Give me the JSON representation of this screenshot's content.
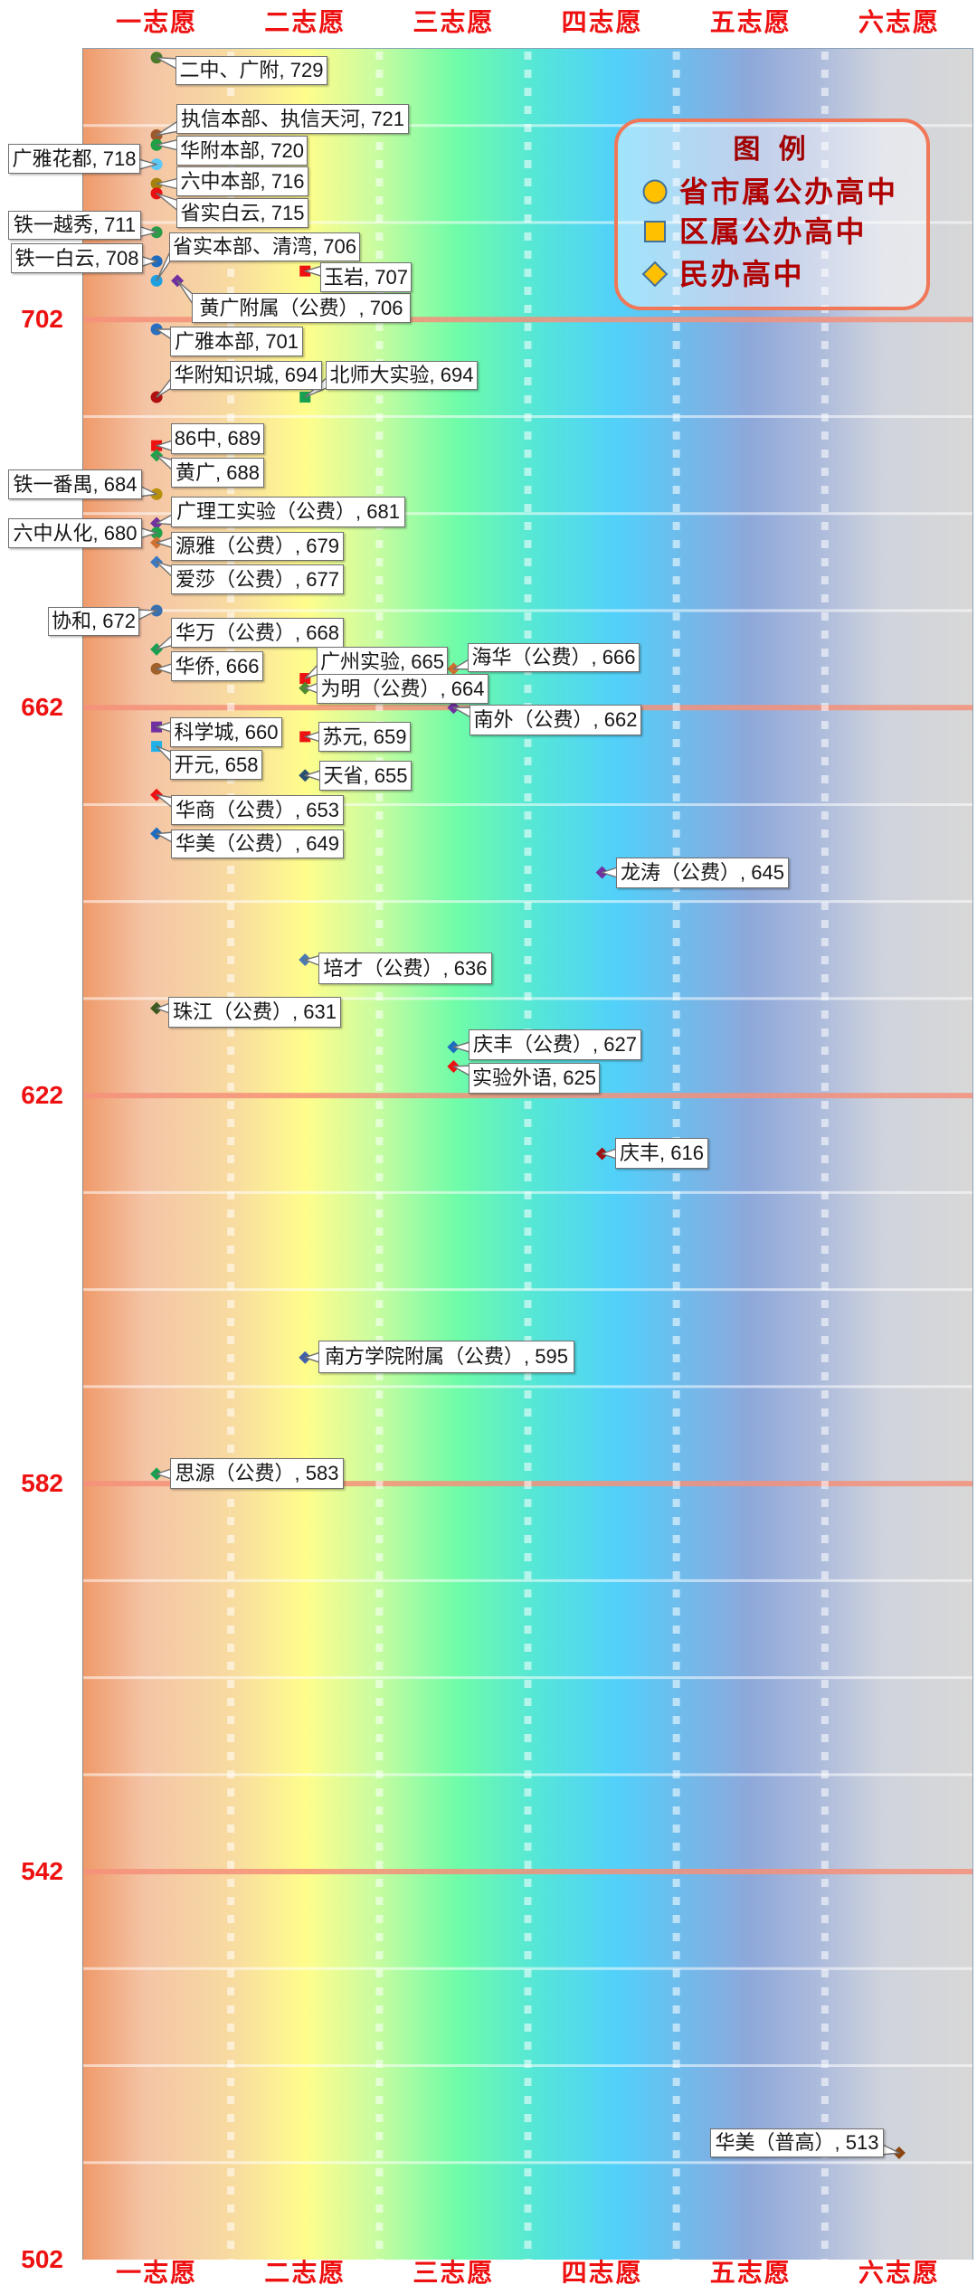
{
  "axis": {
    "top_categories": [
      "一志愿",
      "二志愿",
      "三志愿",
      "四志愿",
      "五志愿",
      "六志愿"
    ],
    "bottom_categories": [
      "一志愿",
      "二志愿",
      "三志愿",
      "四志愿",
      "五志愿",
      "六志愿"
    ],
    "y_labels": [
      "702",
      "662",
      "622",
      "582",
      "542",
      "502"
    ]
  },
  "legend": {
    "title": "图 例",
    "items": [
      {
        "label": "省市属公办高中",
        "shape": "circle"
      },
      {
        "label": "区属公办高中",
        "shape": "square"
      },
      {
        "label": "民办高中",
        "shape": "diamond"
      }
    ],
    "marker_fill": "#ffc000",
    "marker_stroke": "#41719c",
    "border_color": "#f07858",
    "text_color": "#b00000"
  },
  "colors": {
    "axis_label": "#ee1111",
    "major_grid": "#f4907a",
    "minor_grid": "rgba(255,255,255,0.55)",
    "label_border": "#707070"
  },
  "chart_data": {
    "type": "scatter",
    "title": "",
    "xlabel": "",
    "ylabel": "",
    "categories": [
      "一志愿",
      "二志愿",
      "三志愿",
      "四志愿",
      "五志愿",
      "六志愿"
    ],
    "ylim": [
      502,
      730
    ],
    "y_major_ticks": [
      502,
      542,
      582,
      622,
      662,
      702
    ],
    "y_minor_step": 10,
    "grid": true,
    "legend_position": "top-right",
    "series": [
      {
        "name": "省市属公办高中",
        "marker": "circle"
      },
      {
        "name": "区属公办高中",
        "marker": "square"
      },
      {
        "name": "民办高中",
        "marker": "diamond"
      }
    ],
    "points": [
      {
        "name": "二中、广附",
        "value": 729,
        "category": "一志愿",
        "series": "省市属公办高中",
        "color": "#4a7a2a",
        "label": "二中、广附, 729",
        "label_box": [
          194,
          62,
          168,
          32
        ]
      },
      {
        "name": "执信本部、执信天河",
        "value": 721,
        "category": "一志愿",
        "series": "省市属公办高中",
        "color": "#9c5a2c",
        "label": "执信本部、执信天河, 721",
        "label_box": [
          195,
          115,
          257,
          33
        ]
      },
      {
        "name": "华附本部",
        "value": 720,
        "category": "一志愿",
        "series": "省市属公办高中",
        "color": "#1fa045",
        "label": "华附本部, 720",
        "label_box": [
          195,
          150,
          145,
          33
        ]
      },
      {
        "name": "广雅花都",
        "value": 718,
        "category": "一志愿",
        "series": "省市属公办高中",
        "color": "#5bc8f5",
        "label": "广雅花都, 718",
        "label_box": [
          9,
          159,
          146,
          33
        ]
      },
      {
        "name": "六中本部",
        "value": 716,
        "category": "一志愿",
        "series": "省市属公办高中",
        "color": "#a6820c",
        "label": "六中本部, 716",
        "label_box": [
          195,
          184,
          146,
          33
        ]
      },
      {
        "name": "省实白云",
        "value": 715,
        "category": "一志愿",
        "series": "省市属公办高中",
        "color": "#e81010",
        "label": "省实白云, 715",
        "label_box": [
          195,
          219,
          146,
          33
        ]
      },
      {
        "name": "铁一越秀",
        "value": 711,
        "category": "一志愿",
        "series": "省市属公办高中",
        "color": "#2a9a48",
        "label": "铁一越秀, 711",
        "label_box": [
          9,
          233,
          147,
          32
        ]
      },
      {
        "name": "铁一白云",
        "value": 708,
        "category": "一志愿",
        "series": "省市属公办高中",
        "color": "#1e6cc0",
        "label": "铁一白云, 708",
        "label_box": [
          12,
          269,
          146,
          33
        ]
      },
      {
        "name": "省实本部、清湾",
        "value": 706,
        "category": "一志愿",
        "series": "省市属公办高中",
        "color": "#1ea0e0",
        "label": "省实本部、清湾, 706",
        "label_box": [
          187,
          257,
          211,
          32
        ]
      },
      {
        "name": "黄广附属（公费）",
        "value": 706,
        "category": "一志愿",
        "series": "民办高中",
        "color": "#7030a0",
        "label": "黄广附属（公费）, 706",
        "label_box": [
          212,
          324,
          242,
          33
        ],
        "x_shift": 23
      },
      {
        "name": "广雅本部",
        "value": 701,
        "category": "一志愿",
        "series": "省市属公办高中",
        "color": "#2a6ebf",
        "label": "广雅本部, 701",
        "label_box": [
          188,
          361,
          147,
          33
        ]
      },
      {
        "name": "华附知识城",
        "value": 694,
        "category": "一志愿",
        "series": "省市属公办高中",
        "color": "#b01010",
        "label": "华附知识城, 694",
        "label_box": [
          188,
          399,
          168,
          32
        ]
      },
      {
        "name": "86中",
        "value": 689,
        "category": "一志愿",
        "series": "区属公办高中",
        "color": "#ee1111",
        "label": "86中, 689",
        "label_box": [
          189,
          468,
          103,
          34
        ]
      },
      {
        "name": "黄广",
        "value": 688,
        "category": "一志愿",
        "series": "民办高中",
        "color": "#22a04a",
        "label": "黄广, 688",
        "label_box": [
          189,
          506,
          103,
          33
        ]
      },
      {
        "name": "铁一番禺",
        "value": 684,
        "category": "一志愿",
        "series": "省市属公办高中",
        "color": "#b8900e",
        "label": "铁一番禺, 684",
        "label_box": [
          9,
          519,
          148,
          33
        ]
      },
      {
        "name": "广理工实验（公费）",
        "value": 681,
        "category": "一志愿",
        "series": "民办高中",
        "color": "#7030a0",
        "label": "广理工实验（公费）, 681",
        "label_box": [
          189,
          549,
          259,
          34
        ]
      },
      {
        "name": "六中从化",
        "value": 680,
        "category": "一志愿",
        "series": "省市属公办高中",
        "color": "#22a04a",
        "label": "六中从化, 680",
        "label_box": [
          9,
          573,
          148,
          33
        ]
      },
      {
        "name": "源雅（公费）",
        "value": 679,
        "category": "一志愿",
        "series": "民办高中",
        "color": "#d07030",
        "label": "源雅（公费）, 679",
        "label_box": [
          189,
          588,
          191,
          32
        ]
      },
      {
        "name": "爱莎（公费）",
        "value": 677,
        "category": "一志愿",
        "series": "民办高中",
        "color": "#3a78c0",
        "label": "爱莎（公费）, 677",
        "label_box": [
          189,
          624,
          191,
          33
        ]
      },
      {
        "name": "协和",
        "value": 672,
        "category": "一志愿",
        "series": "省市属公办高中",
        "color": "#3a70b0",
        "label": "协和, 672",
        "label_box": [
          53,
          671,
          101,
          32
        ]
      },
      {
        "name": "华万（公费）",
        "value": 668,
        "category": "一志愿",
        "series": "民办高中",
        "color": "#18a050",
        "label": "华万（公费）, 668",
        "label_box": [
          189,
          683,
          191,
          33
        ]
      },
      {
        "name": "华侨",
        "value": 666,
        "category": "一志愿",
        "series": "省市属公办高中",
        "color": "#a0602a",
        "label": "华侨, 666",
        "label_box": [
          189,
          720,
          102,
          33
        ]
      },
      {
        "name": "科学城",
        "value": 660,
        "category": "一志愿",
        "series": "区属公办高中",
        "color": "#7030a0",
        "label": "科学城, 660",
        "label_box": [
          188,
          793,
          124,
          33
        ]
      },
      {
        "name": "开元",
        "value": 658,
        "category": "一志愿",
        "series": "区属公办高中",
        "color": "#20b0e8",
        "label": "开元, 658",
        "label_box": [
          188,
          829,
          102,
          33
        ]
      },
      {
        "name": "华商（公费）",
        "value": 653,
        "category": "一志愿",
        "series": "民办高中",
        "color": "#ee1111",
        "label": "华商（公费）, 653",
        "label_box": [
          189,
          879,
          191,
          33
        ]
      },
      {
        "name": "华美（公费）",
        "value": 649,
        "category": "一志愿",
        "series": "民办高中",
        "color": "#1e6cc0",
        "label": "华美（公费）, 649",
        "label_box": [
          189,
          917,
          191,
          32
        ]
      },
      {
        "name": "珠江（公费）",
        "value": 631,
        "category": "一志愿",
        "series": "民办高中",
        "color": "#3d5a1e",
        "label": "珠江（公费）, 631",
        "label_box": [
          186,
          1102,
          191,
          34
        ]
      },
      {
        "name": "思源（公费）",
        "value": 583,
        "category": "一志愿",
        "series": "民办高中",
        "color": "#18a050",
        "label": "思源（公费）, 583",
        "label_box": [
          188,
          1612,
          192,
          34
        ]
      },
      {
        "name": "玉岩",
        "value": 707,
        "category": "二志愿",
        "series": "区属公办高中",
        "color": "#ee1111",
        "label": "玉岩, 707",
        "label_box": [
          354,
          290,
          101,
          33
        ]
      },
      {
        "name": "北师大实验",
        "value": 694,
        "category": "二志愿",
        "series": "区属公办高中",
        "color": "#18a050",
        "label": "北师大实验, 694",
        "label_box": [
          360,
          399,
          168,
          32
        ]
      },
      {
        "name": "广州实验",
        "value": 665,
        "category": "二志愿",
        "series": "区属公办高中",
        "color": "#ee1111",
        "label": "广州实验, 665",
        "label_box": [
          350,
          715,
          145,
          33
        ]
      },
      {
        "name": "为明（公费）",
        "value": 664,
        "category": "二志愿",
        "series": "民办高中",
        "color": "#4e8a30",
        "label": "为明（公费）, 664",
        "label_box": [
          350,
          745,
          190,
          33
        ]
      },
      {
        "name": "苏元",
        "value": 659,
        "category": "二志愿",
        "series": "区属公办高中",
        "color": "#ee1111",
        "label": "苏元, 659",
        "label_box": [
          352,
          798,
          102,
          33
        ]
      },
      {
        "name": "天省",
        "value": 655,
        "category": "二志愿",
        "series": "民办高中",
        "color": "#2a5070",
        "label": "天省, 655",
        "label_box": [
          353,
          841,
          102,
          33
        ]
      },
      {
        "name": "培才（公费）",
        "value": 636,
        "category": "二志愿",
        "series": "民办高中",
        "color": "#4a7ab0",
        "label": "培才（公费）, 636",
        "label_box": [
          352,
          1053,
          192,
          35
        ]
      },
      {
        "name": "南方学院附属（公费）",
        "value": 595,
        "category": "二志愿",
        "series": "民办高中",
        "color": "#4060a8",
        "label": "南方学院附属（公费）, 595",
        "label_box": [
          352,
          1482,
          283,
          36
        ]
      },
      {
        "name": "海华（公费）",
        "value": 666,
        "category": "三志愿",
        "series": "民办高中",
        "color": "#d07030",
        "label": "海华（公费）, 666",
        "label_box": [
          517,
          711,
          190,
          32
        ]
      },
      {
        "name": "南外（公费）",
        "value": 662,
        "category": "三志愿",
        "series": "民办高中",
        "color": "#7030a0",
        "label": "南外（公费）, 662",
        "label_box": [
          519,
          779,
          190,
          34
        ]
      },
      {
        "name": "庆丰（公费）",
        "value": 627,
        "category": "三志愿",
        "series": "民办高中",
        "color": "#1e6cc0",
        "label": "庆丰（公费）, 627",
        "label_box": [
          518,
          1138,
          191,
          34
        ]
      },
      {
        "name": "实验外语",
        "value": 625,
        "category": "三志愿",
        "series": "民办高中",
        "color": "#ee1111",
        "label": "实验外语, 625",
        "label_box": [
          518,
          1175,
          145,
          34
        ]
      },
      {
        "name": "龙涛（公费）",
        "value": 645,
        "category": "四志愿",
        "series": "民办高中",
        "color": "#7030a0",
        "label": "龙涛（公费）, 645",
        "label_box": [
          681,
          948,
          191,
          34
        ]
      },
      {
        "name": "庆丰",
        "value": 616,
        "category": "四志愿",
        "series": "民办高中",
        "color": "#a01010",
        "label": "庆丰, 616",
        "label_box": [
          680,
          1258,
          103,
          34
        ]
      },
      {
        "name": "华美（普高）",
        "value": 513,
        "category": "六志愿",
        "series": "民办高中",
        "color": "#8b4513",
        "label": "华美（普高）, 513",
        "label_box": [
          785,
          2353,
          192,
          32
        ]
      }
    ]
  }
}
